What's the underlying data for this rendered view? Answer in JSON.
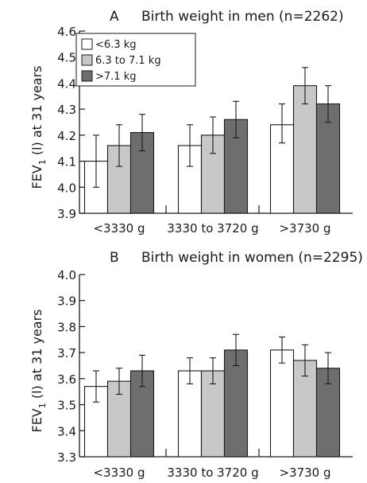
{
  "colors": {
    "series": [
      "#ffffff",
      "#c8c8c8",
      "#6e6e6e"
    ],
    "stroke": "#1a1a1a"
  },
  "chart_data": [
    {
      "type": "bar",
      "panel_letter": "A",
      "title": "Birth weight in men (n=2262)",
      "ylabel": "FEV1 (l) at 31 years",
      "ylabel_main": "FEV",
      "ylabel_sub": "1",
      "ylabel_rest": " (l) at 31 years",
      "ylim": [
        3.9,
        4.6
      ],
      "yticks": [
        "4.6",
        "4.5",
        "4.4",
        "4.3",
        "4.2",
        "4.1",
        "4.0",
        "3.9"
      ],
      "categories": [
        "<3330 g",
        "3330 to 3720 g",
        ">3730 g"
      ],
      "series": [
        {
          "name": "<6.3 kg",
          "values": [
            4.1,
            4.16,
            4.24
          ],
          "err_low": [
            4.0,
            4.08,
            4.17
          ],
          "err_high": [
            4.2,
            4.24,
            4.32
          ]
        },
        {
          "name": "6.3 to 7.1 kg",
          "values": [
            4.16,
            4.2,
            4.39
          ],
          "err_low": [
            4.08,
            4.13,
            4.32
          ],
          "err_high": [
            4.24,
            4.27,
            4.46
          ]
        },
        {
          "name": ">7.1 kg",
          "values": [
            4.21,
            4.26,
            4.32
          ],
          "err_low": [
            4.14,
            4.19,
            4.25
          ],
          "err_high": [
            4.28,
            4.33,
            4.39
          ]
        }
      ],
      "legend": "top-left"
    },
    {
      "type": "bar",
      "panel_letter": "B",
      "title": "Birth weight in women (n=2295)",
      "ylabel": "FEV1 (l) at 31 years",
      "ylabel_main": "FEV",
      "ylabel_sub": "1",
      "ylabel_rest": " (l) at 31 years",
      "ylim": [
        3.3,
        4.0
      ],
      "yticks": [
        "4.0",
        "3.9",
        "3.8",
        "3.7",
        "3.6",
        "3.5",
        "3.4",
        "3.3"
      ],
      "categories": [
        "<3330 g",
        "3330 to 3720 g",
        ">3730 g"
      ],
      "series": [
        {
          "name": "<6.3 kg",
          "values": [
            3.57,
            3.63,
            3.71
          ],
          "err_low": [
            3.51,
            3.58,
            3.66
          ],
          "err_high": [
            3.63,
            3.68,
            3.76
          ]
        },
        {
          "name": "6.3 to 7.1 kg",
          "values": [
            3.59,
            3.63,
            3.67
          ],
          "err_low": [
            3.54,
            3.58,
            3.61
          ],
          "err_high": [
            3.64,
            3.68,
            3.73
          ]
        },
        {
          "name": ">7.1 kg",
          "values": [
            3.63,
            3.71,
            3.64
          ],
          "err_low": [
            3.57,
            3.65,
            3.58
          ],
          "err_high": [
            3.69,
            3.77,
            3.7
          ]
        }
      ],
      "legend": "none"
    }
  ]
}
